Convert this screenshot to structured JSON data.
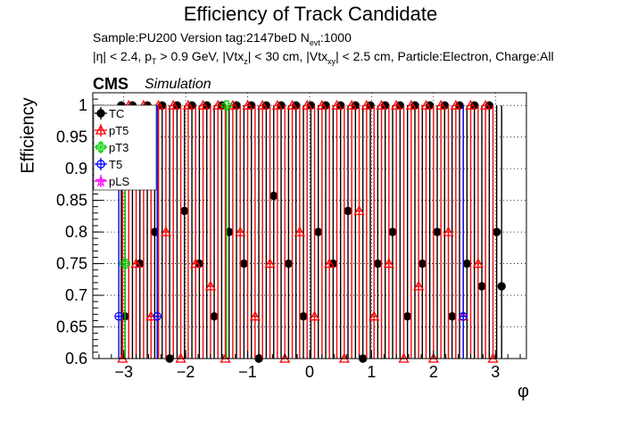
{
  "header": {
    "title": "Efficiency of Track Candidate",
    "line1_a": "Sample:PU200   Version tag:2147beD  N",
    "line1_sub": "evt",
    "line1_b": ":1000",
    "line2_a": "|η| < 2.4, p",
    "line2_sub1": "T",
    "line2_b": " > 0.9 GeV, |Vtx",
    "line2_sub2": "z",
    "line2_c": "| < 30 cm, |Vtx",
    "line2_sub3": "xy",
    "line2_d": "| < 2.5 cm, Particle:Electron, Charge:All",
    "cms": "CMS",
    "simulation": "Simulation"
  },
  "chart_data": {
    "type": "scatter",
    "title": "Efficiency of Track Candidate",
    "xlabel": "φ",
    "ylabel": "Efficiency",
    "xlim": [
      -3.5,
      3.5
    ],
    "ylim": [
      0.6,
      1.02
    ],
    "x_ticks": [
      -3,
      -2,
      -1,
      0,
      1,
      2,
      3
    ],
    "x_tick_labels": [
      "−3",
      "−2",
      "−1",
      "0",
      "1",
      "2",
      "3"
    ],
    "y_ticks": [
      0.6,
      0.65,
      0.7,
      0.75,
      0.8,
      0.85,
      0.9,
      0.95,
      1.0
    ],
    "y_tick_labels": [
      "0.6",
      "0.65",
      "0.7",
      "0.75",
      "0.8",
      "0.85",
      "0.9",
      "0.95",
      "1"
    ],
    "grid": true,
    "legend_position": "top-left",
    "series": [
      {
        "name": "TC",
        "color": "#000000",
        "marker": "filled-circle",
        "x": [
          -3.04,
          -2.98,
          -2.86,
          -2.74,
          -2.62,
          -2.5,
          -2.38,
          -2.26,
          -2.14,
          -2.02,
          -1.9,
          -1.78,
          -1.66,
          -1.54,
          -1.42,
          -1.3,
          -1.18,
          -1.06,
          -0.94,
          -0.82,
          -0.7,
          -0.58,
          -0.46,
          -0.34,
          -0.22,
          -0.1,
          0.02,
          0.14,
          0.26,
          0.38,
          0.5,
          0.62,
          0.74,
          0.86,
          0.98,
          1.1,
          1.22,
          1.34,
          1.46,
          1.58,
          1.7,
          1.82,
          1.94,
          2.06,
          2.18,
          2.3,
          2.42,
          2.54,
          2.66,
          2.78,
          2.9,
          3.02,
          3.1
        ],
        "y": [
          1.0,
          0.6667,
          1.0,
          0.75,
          1.0,
          0.8,
          1.0,
          0.6,
          1.0,
          0.8333,
          1.0,
          0.75,
          1.0,
          0.6667,
          1.0,
          0.8,
          1.0,
          0.75,
          1.0,
          0.6,
          1.0,
          0.8571,
          1.0,
          0.75,
          1.0,
          0.6667,
          1.0,
          0.8,
          1.0,
          0.75,
          1.0,
          0.8333,
          1.0,
          0.6,
          1.0,
          0.75,
          1.0,
          0.8,
          1.0,
          0.6667,
          1.0,
          0.75,
          1.0,
          0.8,
          1.0,
          0.6667,
          1.0,
          0.75,
          1.0,
          0.7143,
          1.0,
          0.8,
          0.7143
        ]
      },
      {
        "name": "pT5",
        "color": "#ff0000",
        "marker": "open-triangle",
        "x": [
          -3.02,
          -2.92,
          -2.8,
          -2.68,
          -2.56,
          -2.44,
          -2.32,
          -2.2,
          -2.08,
          -1.96,
          -1.84,
          -1.72,
          -1.6,
          -1.48,
          -1.36,
          -1.24,
          -1.12,
          -1.0,
          -0.88,
          -0.76,
          -0.64,
          -0.52,
          -0.4,
          -0.28,
          -0.16,
          -0.04,
          0.08,
          0.2,
          0.32,
          0.44,
          0.56,
          0.68,
          0.8,
          0.92,
          1.04,
          1.16,
          1.28,
          1.4,
          1.52,
          1.64,
          1.76,
          1.88,
          2.0,
          2.12,
          2.24,
          2.36,
          2.48,
          2.6,
          2.72,
          2.84,
          2.96
        ],
        "y": [
          0.6,
          1.0,
          0.75,
          1.0,
          0.6667,
          1.0,
          0.8,
          1.0,
          0.6,
          1.0,
          0.75,
          1.0,
          0.7143,
          1.0,
          0.6,
          1.0,
          0.8,
          1.0,
          0.6667,
          1.0,
          0.75,
          1.0,
          0.6,
          1.0,
          0.8,
          1.0,
          0.6667,
          1.0,
          0.75,
          1.0,
          0.6,
          1.0,
          0.8333,
          1.0,
          0.6667,
          1.0,
          0.75,
          1.0,
          0.6,
          1.0,
          0.7143,
          1.0,
          0.6,
          1.0,
          0.8,
          1.0,
          0.6667,
          1.0,
          0.75,
          1.0,
          0.6
        ]
      },
      {
        "name": "pT3",
        "color": "#00cc00",
        "marker": "open-cross",
        "x": [
          -2.98,
          -1.34
        ],
        "y": [
          0.75,
          1.0
        ]
      },
      {
        "name": "T5",
        "color": "#0000ff",
        "marker": "open-circle",
        "x": [
          -3.08,
          -2.46,
          2.48
        ],
        "y": [
          0.6667,
          0.6667,
          0.6667
        ]
      },
      {
        "name": "pLS",
        "color": "#ff00ff",
        "marker": "open-star",
        "x": [],
        "y": []
      }
    ]
  }
}
